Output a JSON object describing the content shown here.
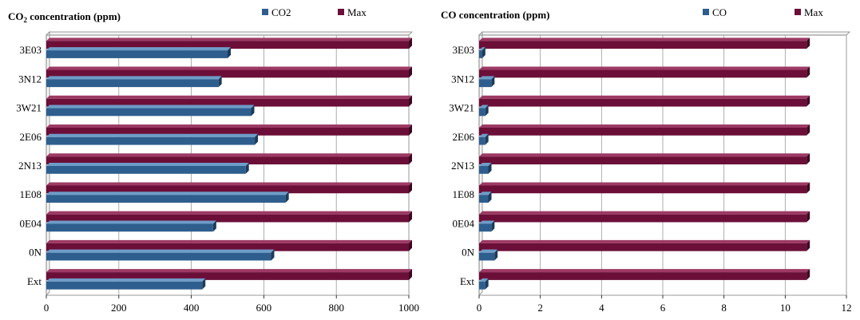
{
  "colors": {
    "series_blue": "#2E5E8E",
    "series_blue_top": "#6E9CC8",
    "series_blue_side": "#1C3A5A",
    "series_maroon": "#6B0F38",
    "series_maroon_top": "#9C3A64",
    "series_maroon_side": "#3E0620",
    "grid": "#9a9a9a",
    "plot_border": "#808080"
  },
  "chart_data": [
    {
      "type": "bar",
      "orientation": "horizontal",
      "title": "CO₂ concentration (ppm)",
      "title_parts": {
        "main": "CO",
        "sub": "2",
        "rest": " concentration (ppm)"
      },
      "categories": [
        "Ext",
        "0N",
        "0E04",
        "1E08",
        "2N13",
        "2E06",
        "3W21",
        "3N12",
        "3E03"
      ],
      "series": [
        {
          "name": "CO2",
          "values": [
            430,
            620,
            460,
            660,
            550,
            575,
            565,
            475,
            500
          ],
          "color_key": "blue"
        },
        {
          "name": "Max",
          "values": [
            1000,
            1000,
            1000,
            1000,
            1000,
            1000,
            1000,
            1000,
            1000
          ],
          "color_key": "maroon"
        }
      ],
      "xlim": [
        0,
        1000
      ],
      "xticks": [
        0,
        200,
        400,
        600,
        800,
        1000
      ],
      "grid": true,
      "legend_position": "top-right"
    },
    {
      "type": "bar",
      "orientation": "horizontal",
      "title": "CO concentration (ppm)",
      "title_parts": {
        "main": "CO concentration (ppm)",
        "sub": "",
        "rest": ""
      },
      "categories": [
        "Ext",
        "0N",
        "0E04",
        "1E08",
        "2N13",
        "2E06",
        "3W21",
        "3N12",
        "3E03"
      ],
      "series": [
        {
          "name": "CO",
          "values": [
            0.2,
            0.5,
            0.4,
            0.3,
            0.3,
            0.2,
            0.2,
            0.4,
            0.1
          ],
          "color_key": "blue"
        },
        {
          "name": "Max",
          "values": [
            10.7,
            10.7,
            10.7,
            10.7,
            10.7,
            10.7,
            10.7,
            10.7,
            10.7
          ],
          "color_key": "maroon"
        }
      ],
      "xlim": [
        0,
        12
      ],
      "xticks": [
        0,
        2,
        4,
        6,
        8,
        10,
        12
      ],
      "grid": true,
      "legend_position": "top-right"
    }
  ]
}
